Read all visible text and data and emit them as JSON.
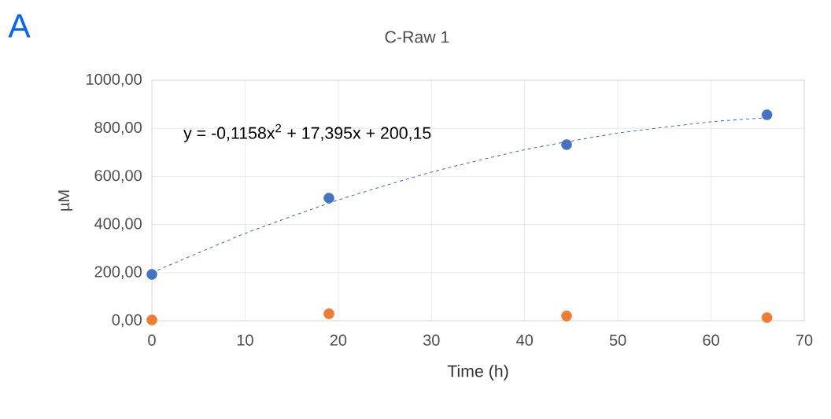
{
  "chart_data": {
    "type": "scatter",
    "title": "C-Raw 1",
    "xlabel": "Time (h)",
    "ylabel": "µM",
    "annotations": [
      "A",
      "y = -0,1158x$^{2}$ + 17,395x + 200,15"
    ],
    "xlim": [
      0,
      70
    ],
    "xticks": [
      0,
      10,
      20,
      30,
      40,
      50,
      60,
      70
    ],
    "ylim": [
      0,
      1000
    ],
    "yticks": [
      {
        "value": 0,
        "label": "0,00"
      },
      {
        "value": 200,
        "label": "200,00"
      },
      {
        "value": 400,
        "label": "400,00"
      },
      {
        "value": 600,
        "label": "600,00"
      },
      {
        "value": 800,
        "label": "800,00"
      },
      {
        "value": 1000,
        "label": "1000,00"
      }
    ],
    "grid": true,
    "marker": "circle",
    "series": [
      {
        "type": "scatter",
        "color": "#4472c4",
        "x": [
          0,
          19,
          44.5,
          66
        ],
        "values": [
          193,
          510,
          732,
          856
        ]
      },
      {
        "type": "scatter",
        "color": "#ed7d31",
        "x": [
          0,
          19,
          44.5,
          66
        ],
        "values": [
          3,
          29,
          20,
          13
        ]
      },
      {
        "type": "line",
        "color": "#4472c4",
        "line_style": "dashed",
        "marker": "none",
        "x": [
          0,
          10,
          20,
          30,
          40,
          50,
          60,
          66
        ],
        "values": [
          200,
          363,
          502,
          618,
          711,
          780,
          827,
          844
        ]
      }
    ]
  }
}
